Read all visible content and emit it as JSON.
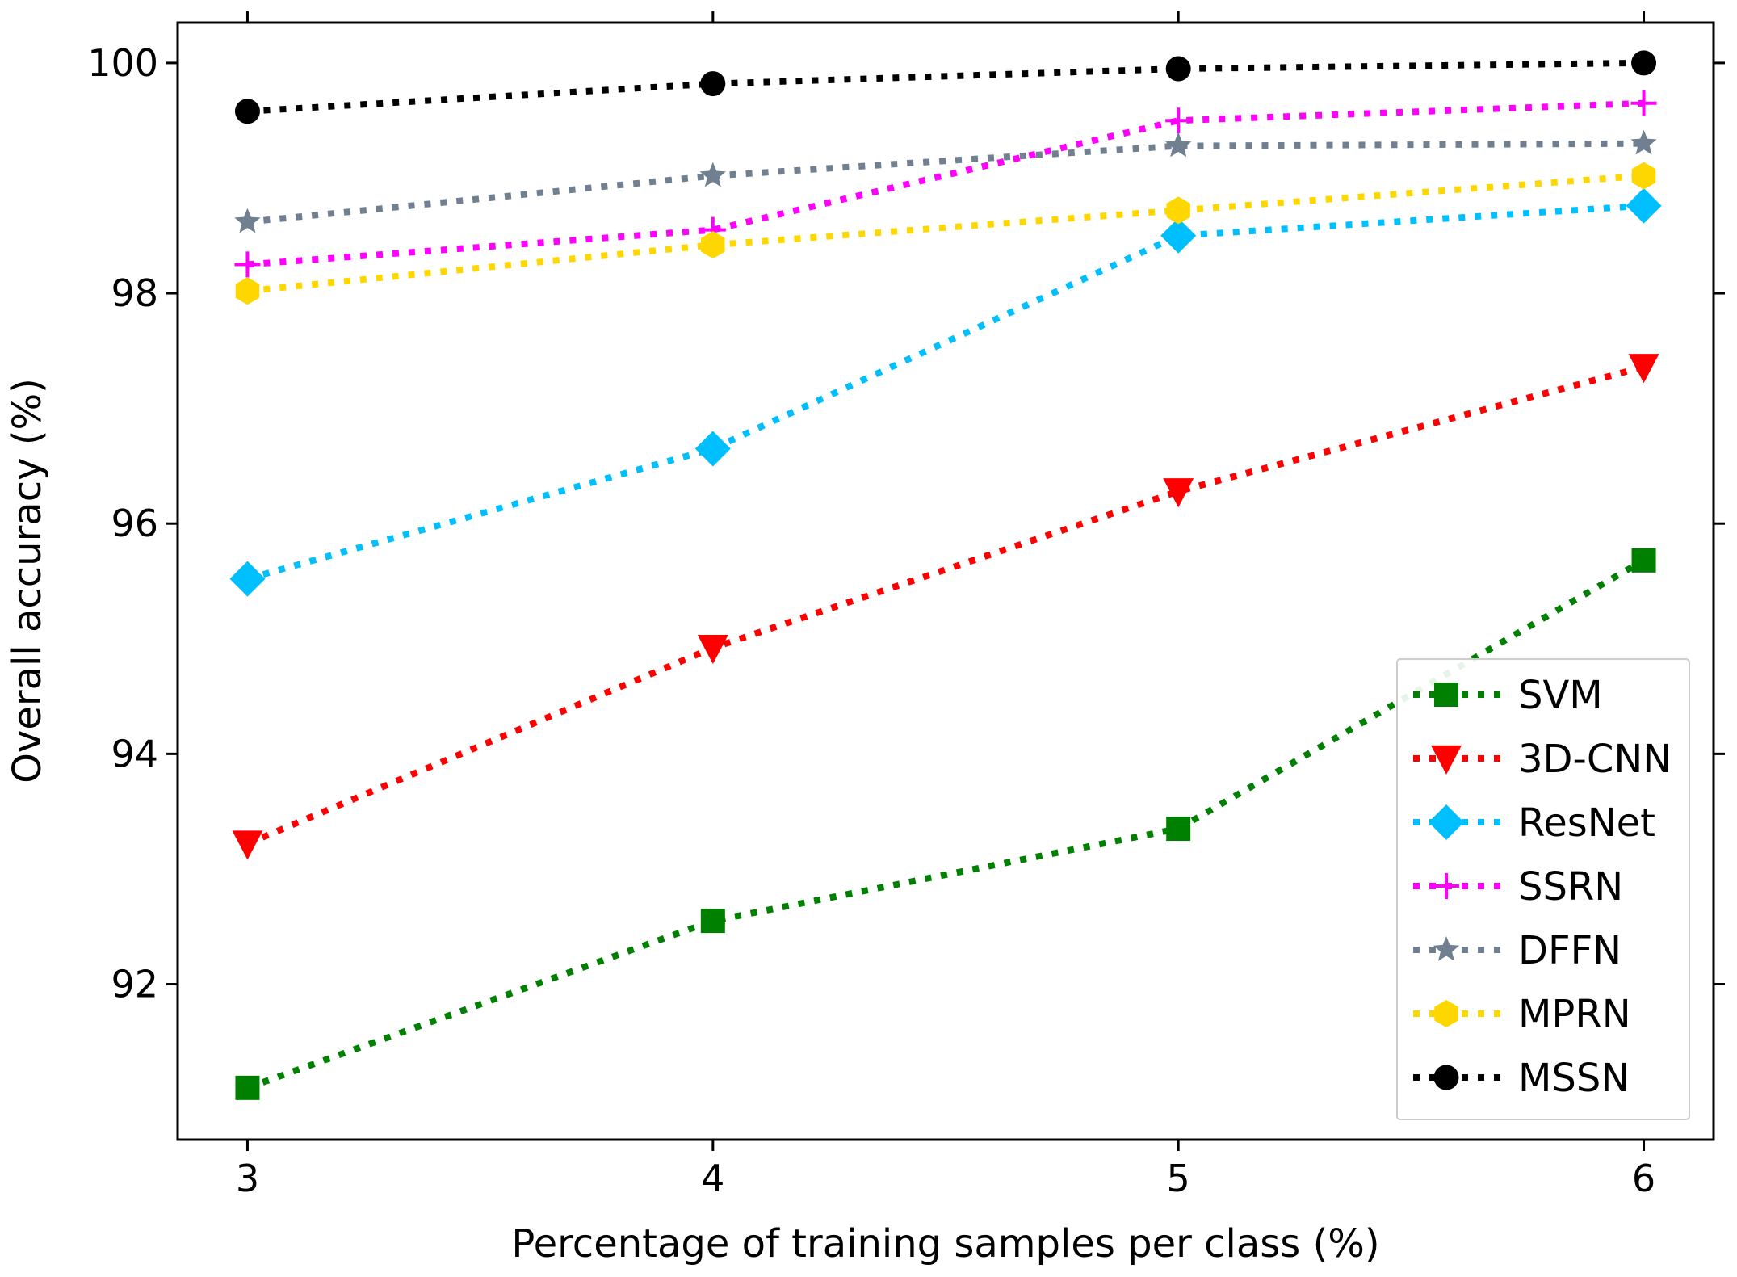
{
  "chart_data": {
    "type": "line",
    "title": "",
    "xlabel": "Percentage of training samples per class (%)",
    "ylabel": "Overall accuracy (%)",
    "x": [
      3,
      4,
      5,
      6
    ],
    "x_tick_labels": [
      "3",
      "4",
      "5",
      "6"
    ],
    "xlim": [
      2.85,
      6.15
    ],
    "ylim": [
      90.65,
      100.35
    ],
    "y_ticks": [
      92,
      94,
      96,
      98,
      100
    ],
    "y_tick_labels": [
      "92",
      "94",
      "96",
      "98",
      "100"
    ],
    "grid": false,
    "legend_position": "lower-right",
    "series": [
      {
        "name": "SVM",
        "color": "#008000",
        "marker": "square",
        "values": [
          91.1,
          92.55,
          93.35,
          95.68
        ]
      },
      {
        "name": "3D-CNN",
        "color": "#ff0000",
        "marker": "triangle-down",
        "values": [
          93.22,
          94.92,
          96.28,
          97.36
        ]
      },
      {
        "name": "ResNet",
        "color": "#00bfff",
        "marker": "diamond",
        "values": [
          95.52,
          96.65,
          98.5,
          98.76
        ]
      },
      {
        "name": "SSRN",
        "color": "#ff00ff",
        "marker": "plus",
        "values": [
          98.25,
          98.55,
          99.5,
          99.65
        ]
      },
      {
        "name": "DFFN",
        "color": "#708090",
        "marker": "star",
        "values": [
          98.62,
          99.02,
          99.28,
          99.3
        ]
      },
      {
        "name": "MPRN",
        "color": "#ffd700",
        "marker": "hexagon",
        "values": [
          98.02,
          98.42,
          98.72,
          99.02
        ]
      },
      {
        "name": "MSSN",
        "color": "#000000",
        "marker": "circle",
        "values": [
          99.58,
          99.82,
          99.95,
          100.0
        ]
      }
    ]
  }
}
